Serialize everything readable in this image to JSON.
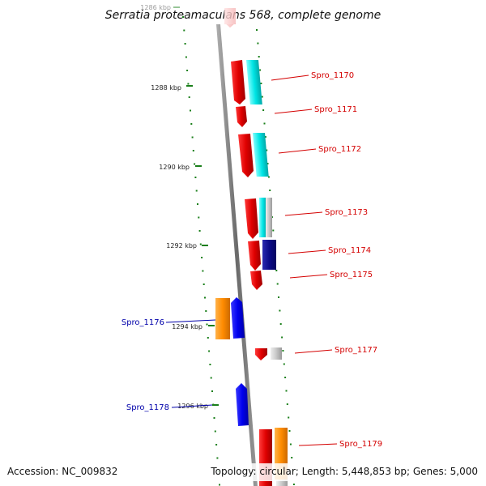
{
  "title": "Serratia proteamaculans 568, complete genome",
  "footer": {
    "accession": "Accession: NC_009832",
    "topology": "Topology: circular; Length: 5,448,853 bp; Genes: 5,000"
  },
  "ticks": [
    "1286 kbp",
    "1288 kbp",
    "1290 kbp",
    "1292 kbp",
    "1294 kbp",
    "1296 kbp"
  ],
  "genes": [
    {
      "name": "Spro_1170",
      "strand": "reverse"
    },
    {
      "name": "Spro_1171",
      "strand": "reverse"
    },
    {
      "name": "Spro_1172",
      "strand": "reverse"
    },
    {
      "name": "Spro_1173",
      "strand": "reverse"
    },
    {
      "name": "Spro_1174",
      "strand": "reverse"
    },
    {
      "name": "Spro_1175",
      "strand": "reverse"
    },
    {
      "name": "Spro_1176",
      "strand": "forward"
    },
    {
      "name": "Spro_1177",
      "strand": "reverse"
    },
    {
      "name": "Spro_1178",
      "strand": "forward"
    },
    {
      "name": "Spro_1179",
      "strand": "reverse"
    }
  ],
  "colors": {
    "gene_red": "#ee0000",
    "gene_cyan": "#00e5e5",
    "gene_navy": "#0a0a88",
    "gene_blue": "#0000ee",
    "gene_orange": "#ff8c00",
    "gene_gray": "#c8c8c8",
    "tick_green": "#1a7f1a",
    "label_red": "#d40000",
    "label_blue": "#0000aa"
  }
}
